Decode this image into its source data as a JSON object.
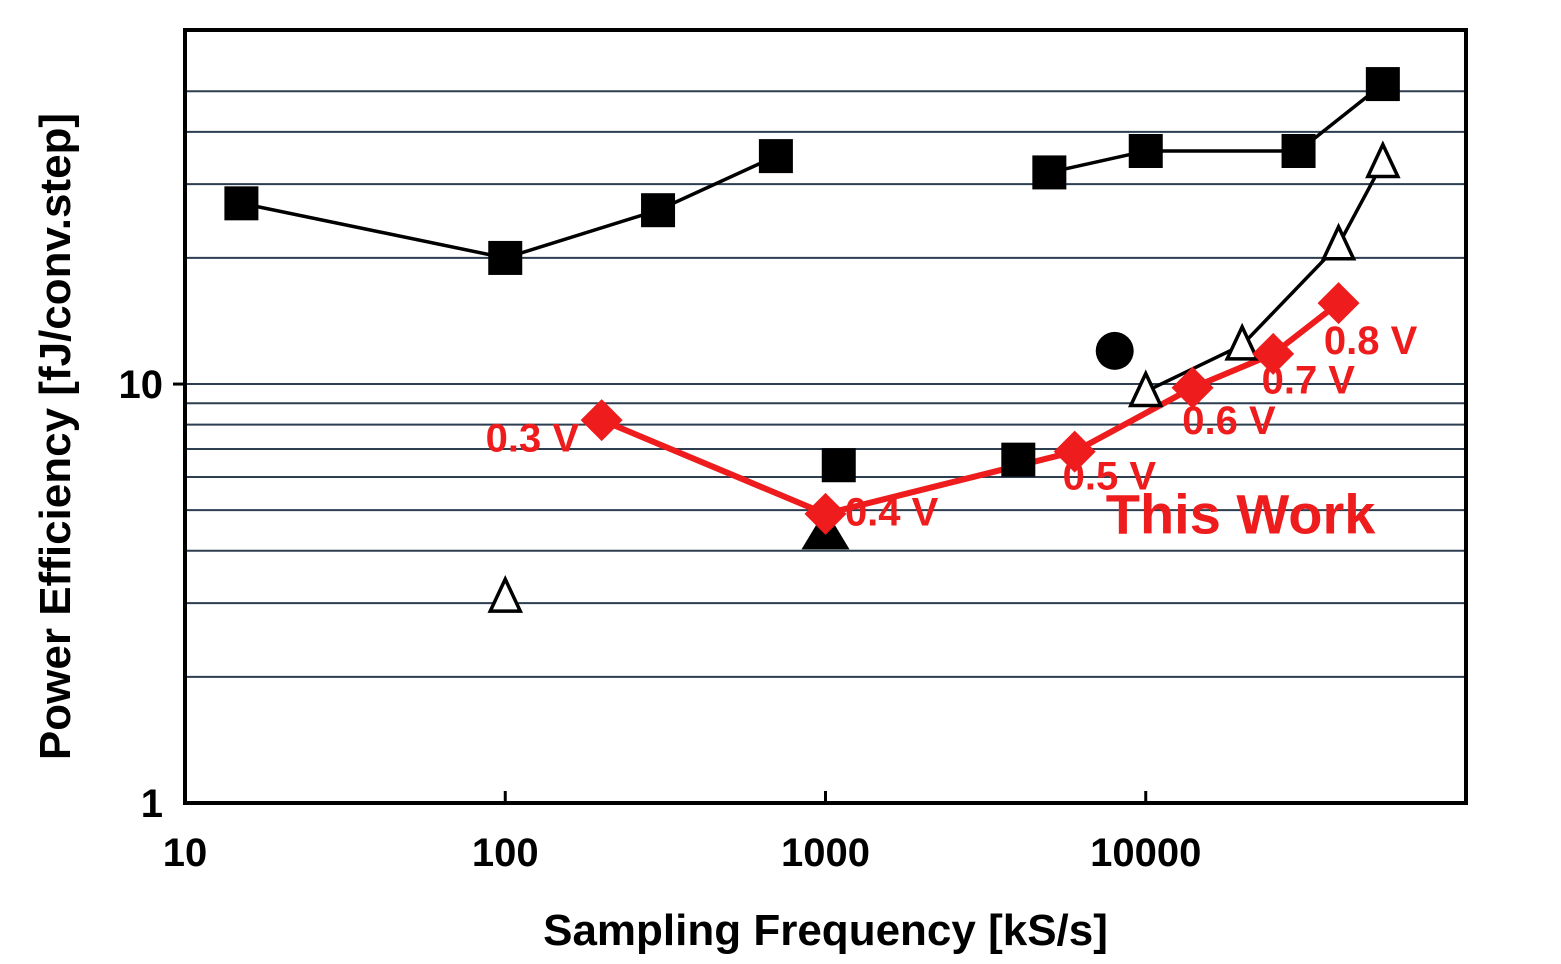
{
  "chart_data": {
    "type": "scatter",
    "title": "",
    "xlabel": "Sampling Frequency [kS/s]",
    "ylabel": "Power Efficiency [fJ/conv.step]",
    "xscale": "log",
    "yscale": "log",
    "xlim": [
      10,
      100000
    ],
    "ylim": [
      1,
      70
    ],
    "x_ticks": [
      {
        "value": 10,
        "label": "10"
      },
      {
        "value": 100,
        "label": "100"
      },
      {
        "value": 1000,
        "label": "1000"
      },
      {
        "value": 10000,
        "label": "10000"
      }
    ],
    "y_ticks": [
      {
        "value": 1,
        "label": "1"
      },
      {
        "value": 10,
        "label": "10"
      }
    ],
    "y_gridlines": [
      2,
      3,
      4,
      5,
      6,
      7,
      8,
      9,
      20,
      30,
      40,
      50
    ],
    "grid": true,
    "colors": {
      "this_work": "#ee1c1c",
      "reference": "#000000"
    },
    "series": [
      {
        "marker": "filled-square",
        "line": true,
        "color": "#000000",
        "x": [
          15,
          100,
          300,
          700
        ],
        "y": [
          27,
          20,
          26,
          35
        ]
      },
      {
        "marker": "filled-square",
        "line": true,
        "color": "#000000",
        "x": [
          5000,
          10000,
          30000,
          55000
        ],
        "y": [
          32,
          36,
          36,
          52
        ]
      },
      {
        "marker": "open-triangle",
        "line": true,
        "color": "#000000",
        "x": [
          10000,
          20000,
          40000,
          55000
        ],
        "y": [
          9.6,
          12.4,
          21.5,
          33.8
        ]
      },
      {
        "marker": "filled-square",
        "line": false,
        "color": "#000000",
        "x": [
          1100,
          4000
        ],
        "y": [
          6.4,
          6.6
        ]
      },
      {
        "marker": "filled-triangle",
        "line": false,
        "color": "#000000",
        "x": [
          1000
        ],
        "y": [
          4.5
        ]
      },
      {
        "marker": "open-triangle",
        "line": false,
        "color": "#000000",
        "x": [
          100
        ],
        "y": [
          3.1
        ]
      },
      {
        "marker": "filled-circle",
        "line": false,
        "color": "#000000",
        "x": [
          8000
        ],
        "y": [
          12
        ]
      },
      {
        "name": "This Work",
        "marker": "filled-diamond",
        "line": true,
        "color": "#ee1c1c",
        "x": [
          200,
          1000,
          6000,
          14000,
          25000,
          40000
        ],
        "y": [
          8.2,
          4.9,
          6.9,
          9.8,
          11.8,
          15.6
        ]
      }
    ],
    "annotations": [
      {
        "text": "0.3 V",
        "x": 170,
        "y": 6.9,
        "anchor": "end"
      },
      {
        "text": "0.4 V",
        "x": 1150,
        "y": 4.6,
        "anchor": "start"
      },
      {
        "text": "0.5 V",
        "x": 5500,
        "y": 5.6,
        "anchor": "start"
      },
      {
        "text": "0.6 V",
        "x": 13000,
        "y": 7.6,
        "anchor": "start"
      },
      {
        "text": "0.7 V",
        "x": 23000,
        "y": 9.5,
        "anchor": "start"
      },
      {
        "text": "0.8 V",
        "x": 36000,
        "y": 11.8,
        "anchor": "start"
      },
      {
        "text": "This Work",
        "x": 7500,
        "y": 4.4,
        "anchor": "start",
        "big": true
      }
    ]
  }
}
